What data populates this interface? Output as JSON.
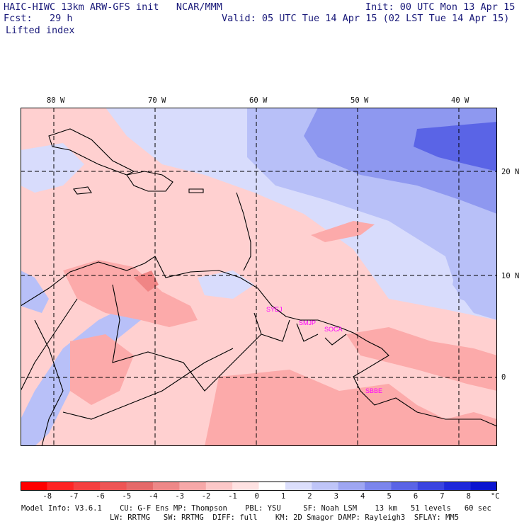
{
  "header": {
    "title_line": "HAIC-HIWC 13km ARW-GFS init   NCAR/MMM",
    "init_line": "Init: 00 UTC Mon 13 Apr 15",
    "fcst_line": "Fcst:   29 h",
    "valid_line": "Valid: 05 UTC Tue 14 Apr 15 (02 LST Tue 14 Apr 15)",
    "field_name": "Lifted index"
  },
  "map": {
    "lon_labels": [
      "80 W",
      "70 W",
      "60 W",
      "50 W",
      "40 W"
    ],
    "lat_labels": [
      "20 N",
      "10 N",
      "0"
    ],
    "stations": [
      "SYEJ",
      "SMJP",
      "SOCA",
      "SBBE"
    ],
    "colors": {
      "neg1": "#ffd0d0",
      "neg2": "#fcaaaa",
      "neg3": "#f08585",
      "neg4": "#e05050",
      "pos1": "#d8dcfc",
      "pos2": "#b8c0f8",
      "pos3": "#8e98f0",
      "pos4": "#5a64e6",
      "station": "#ff00ff"
    }
  },
  "colorbar": {
    "labels": [
      "-8",
      "-7",
      "-6",
      "-5",
      "-4",
      "-3",
      "-2",
      "-1",
      "0",
      "1",
      "2",
      "3",
      "4",
      "5",
      "6",
      "7",
      "8"
    ],
    "unit": "°C",
    "colors": [
      "#ff0000",
      "#ff2424",
      "#f54040",
      "#ee5555",
      "#e56a6a",
      "#ee8888",
      "#f6a8a8",
      "#fcc8c8",
      "#ffe2e2",
      "#ffffff",
      "#dcdffc",
      "#bfc5f8",
      "#9ea6f2",
      "#7b85ec",
      "#5a64e6",
      "#3a44e0",
      "#1e28da",
      "#0a14d0"
    ]
  },
  "footer": {
    "line1": "Model Info: V3.6.1    CU: G-F Ens MP: Thompson    PBL: YSU     SF: Noah LSM    13 km   51 levels   60 sec",
    "line2": "LW: RRTMG   SW: RRTMG  DIFF: full    KM: 2D Smagor DAMP: Rayleigh3  SFLAY: MM5"
  }
}
